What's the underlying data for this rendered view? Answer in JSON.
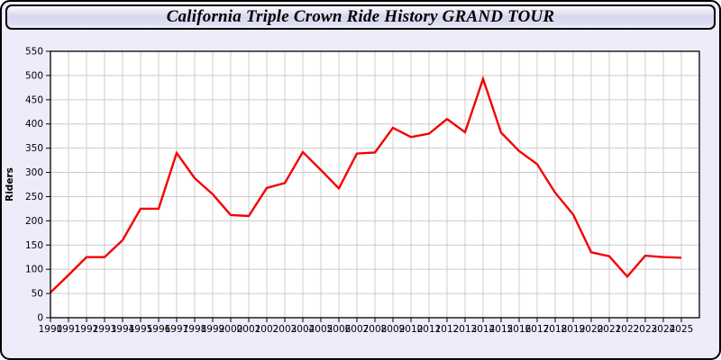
{
  "window": {
    "title": "California Triple Crown Ride History GRAND TOUR"
  },
  "colors": {
    "line": "#F40000",
    "grid": "#CCCCCC",
    "plot_bg": "#FFFFFF",
    "panel_bg": "#ECECFA",
    "axis": "#000000",
    "tick_label": "#000000"
  },
  "chart_data": {
    "type": "line",
    "title": "California Triple Crown Ride History GRAND TOUR",
    "xlabel": "",
    "ylabel": "Riders",
    "x": [
      1990,
      1991,
      1992,
      1993,
      1994,
      1995,
      1996,
      1997,
      1998,
      1999,
      2000,
      2001,
      2002,
      2003,
      2004,
      2005,
      2006,
      2007,
      2008,
      2009,
      2010,
      2011,
      2012,
      2013,
      2014,
      2015,
      2016,
      2017,
      2018,
      2019,
      2020,
      2021,
      2022,
      2023,
      2024,
      2025
    ],
    "series": [
      {
        "name": "Riders",
        "color": "#F40000",
        "values": [
          52,
          88,
          125,
          125,
          160,
          225,
          225,
          340,
          288,
          255,
          212,
          210,
          268,
          278,
          342,
          305,
          267,
          339,
          341,
          392,
          373,
          380,
          410,
          383,
          493,
          382,
          344,
          317,
          258,
          213,
          135,
          127,
          85,
          128,
          125,
          124
        ]
      }
    ],
    "ylim": [
      0,
      550
    ],
    "ytick_step": 50,
    "grid": true,
    "legend_position": "none"
  }
}
